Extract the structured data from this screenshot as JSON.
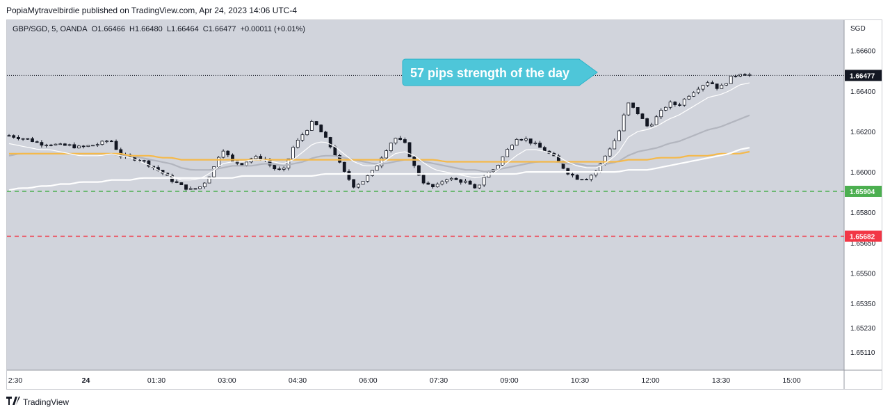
{
  "header": {
    "published_by": "PopiaMytravelbirdie published on TradingView.com, Apr 24, 2023 14:06 UTC-4"
  },
  "symbol_bar": {
    "symbol": "GBP/SGD, 5, OANDA",
    "open": "O1.66466",
    "high": "H1.66480",
    "low": "L1.66464",
    "close": "C1.66477",
    "change": "+0.00011 (+0.01%)"
  },
  "footer": {
    "logo_text": "TradingView",
    "logo_icon": "tradingview-logo-icon"
  },
  "colors": {
    "plot_bg": "#d1d4dc",
    "candle": "#131722",
    "ema_fast": "#ffffff",
    "ema_mid": "#b2b5be",
    "ema_orange": "#f5b94a",
    "ema_slow": "#ffffff",
    "support_line": "#4caf50",
    "stop_line": "#f23645",
    "annotation_bg": "#4ec6d9"
  },
  "chart_data": {
    "type": "candlestick",
    "currency": "SGD",
    "ylim": [
      1.6502,
      1.6675
    ],
    "y_ticks": [
      "1.66600",
      "1.66400",
      "1.66200",
      "1.66000",
      "1.65800",
      "1.65650",
      "1.65500",
      "1.65350",
      "1.65230",
      "1.65110"
    ],
    "x_ticks": [
      "2:30",
      "24",
      "01:30",
      "03:00",
      "04:30",
      "06:00",
      "07:30",
      "09:00",
      "10:30",
      "12:00",
      "13:30",
      "15:00"
    ],
    "current_price": {
      "label": "1.66477",
      "value": 1.66477
    },
    "horizontal_lines": [
      {
        "label": "1.65904",
        "value": 1.65904,
        "color": "#4caf50",
        "style": "dashed"
      },
      {
        "label": "1.65682",
        "value": 1.65682,
        "color": "#f23645",
        "style": "dashed"
      }
    ],
    "annotation": {
      "text": "57 pips strength of the day"
    },
    "price_path": [
      1.6618,
      1.6617,
      1.6616,
      1.6614,
      1.6614,
      1.6613,
      1.6613,
      1.6612,
      1.6613,
      1.6614,
      1.6616,
      1.6608,
      1.6607,
      1.6606,
      1.6603,
      1.66,
      1.6596,
      1.6593,
      1.6591,
      1.6593,
      1.66,
      1.6612,
      1.6605,
      1.6604,
      1.6607,
      1.6607,
      1.6602,
      1.66,
      1.6612,
      1.6619,
      1.6625,
      1.6618,
      1.661,
      1.66,
      1.6593,
      1.6596,
      1.6601,
      1.661,
      1.6617,
      1.6614,
      1.6602,
      1.6594,
      1.6592,
      1.6597,
      1.6596,
      1.6595,
      1.6591,
      1.6599,
      1.6602,
      1.661,
      1.6617,
      1.6616,
      1.6613,
      1.661,
      1.6606,
      1.66,
      1.6597,
      1.6597,
      1.6601,
      1.661,
      1.6618,
      1.6634,
      1.6629,
      1.6622,
      1.6628,
      1.6634,
      1.6633,
      1.6638,
      1.6642,
      1.6645,
      1.6641,
      1.6646,
      1.6649,
      1.6648
    ],
    "ema_fast": [
      1.6614,
      1.6613,
      1.6612,
      1.6611,
      1.6611,
      1.661,
      1.6609,
      1.6608,
      1.6608,
      1.6608,
      1.6609,
      1.6608,
      1.6607,
      1.6605,
      1.6603,
      1.66,
      1.6598,
      1.6596,
      1.6596,
      1.6597,
      1.66,
      1.6604,
      1.6605,
      1.6605,
      1.6606,
      1.6606,
      1.6605,
      1.6604,
      1.6606,
      1.661,
      1.6614,
      1.6615,
      1.6613,
      1.6609,
      1.6605,
      1.6603,
      1.6603,
      1.6605,
      1.6609,
      1.661,
      1.6608,
      1.6604,
      1.6601,
      1.66,
      1.6599,
      1.6598,
      1.6597,
      1.6598,
      1.66,
      1.6604,
      1.6608,
      1.6611,
      1.6611,
      1.661,
      1.6608,
      1.6605,
      1.6603,
      1.6602,
      1.6602,
      1.6605,
      1.6609,
      1.6617,
      1.662,
      1.6621,
      1.6623,
      1.6626,
      1.6628,
      1.6631,
      1.6634,
      1.6637,
      1.6638,
      1.664,
      1.6643,
      1.6644
    ],
    "ema_mid": [
      1.6608,
      1.6609,
      1.6609,
      1.6609,
      1.6609,
      1.6609,
      1.6609,
      1.6609,
      1.6609,
      1.6609,
      1.6609,
      1.6608,
      1.6608,
      1.6607,
      1.6606,
      1.6605,
      1.6604,
      1.6602,
      1.6601,
      1.6601,
      1.6601,
      1.6602,
      1.6603,
      1.6603,
      1.6603,
      1.6604,
      1.6604,
      1.6603,
      1.6604,
      1.6605,
      1.6607,
      1.6608,
      1.6608,
      1.6607,
      1.6606,
      1.6605,
      1.6604,
      1.6604,
      1.6605,
      1.6606,
      1.6606,
      1.6605,
      1.6604,
      1.6603,
      1.6602,
      1.6601,
      1.6601,
      1.66,
      1.6601,
      1.6602,
      1.6603,
      1.6604,
      1.6605,
      1.6605,
      1.6605,
      1.6604,
      1.6604,
      1.6603,
      1.6603,
      1.6604,
      1.6605,
      1.6608,
      1.661,
      1.6611,
      1.6612,
      1.6614,
      1.6615,
      1.6617,
      1.6619,
      1.6621,
      1.6622,
      1.6624,
      1.6626,
      1.6628
    ],
    "ema_orange": [
      1.6609,
      1.6609,
      1.6609,
      1.6609,
      1.6609,
      1.6609,
      1.6609,
      1.6609,
      1.6609,
      1.6609,
      1.6609,
      1.6609,
      1.6608,
      1.6608,
      1.6608,
      1.6607,
      1.6607,
      1.6606,
      1.6606,
      1.6606,
      1.6606,
      1.6606,
      1.6606,
      1.6606,
      1.6606,
      1.6606,
      1.6606,
      1.6606,
      1.6606,
      1.6606,
      1.6606,
      1.6606,
      1.6606,
      1.6606,
      1.6606,
      1.6606,
      1.6606,
      1.6606,
      1.6606,
      1.6606,
      1.6606,
      1.6606,
      1.6606,
      1.6605,
      1.6605,
      1.6605,
      1.6605,
      1.6605,
      1.6605,
      1.6605,
      1.6605,
      1.6605,
      1.6605,
      1.6605,
      1.6605,
      1.6605,
      1.6605,
      1.6605,
      1.6605,
      1.6605,
      1.6605,
      1.6606,
      1.6606,
      1.6606,
      1.6607,
      1.6607,
      1.6607,
      1.6608,
      1.6608,
      1.6608,
      1.6609,
      1.6609,
      1.6609,
      1.661
    ],
    "ema_slow": [
      1.6591,
      1.6592,
      1.6592,
      1.6593,
      1.6593,
      1.6594,
      1.6594,
      1.6595,
      1.6595,
      1.6595,
      1.6596,
      1.6596,
      1.6596,
      1.6597,
      1.6597,
      1.6597,
      1.6597,
      1.6597,
      1.6597,
      1.6597,
      1.6597,
      1.6597,
      1.6597,
      1.6598,
      1.6598,
      1.6598,
      1.6598,
      1.6598,
      1.6598,
      1.6598,
      1.6598,
      1.6599,
      1.6599,
      1.6599,
      1.6599,
      1.6599,
      1.6599,
      1.6599,
      1.6599,
      1.6599,
      1.6599,
      1.6599,
      1.6599,
      1.6599,
      1.6599,
      1.6599,
      1.6599,
      1.6599,
      1.6599,
      1.6599,
      1.6599,
      1.66,
      1.66,
      1.66,
      1.66,
      1.66,
      1.66,
      1.66,
      1.66,
      1.66,
      1.66,
      1.6601,
      1.6601,
      1.6601,
      1.6602,
      1.6603,
      1.6604,
      1.6605,
      1.6606,
      1.6607,
      1.6608,
      1.6609,
      1.6611,
      1.6612
    ]
  }
}
